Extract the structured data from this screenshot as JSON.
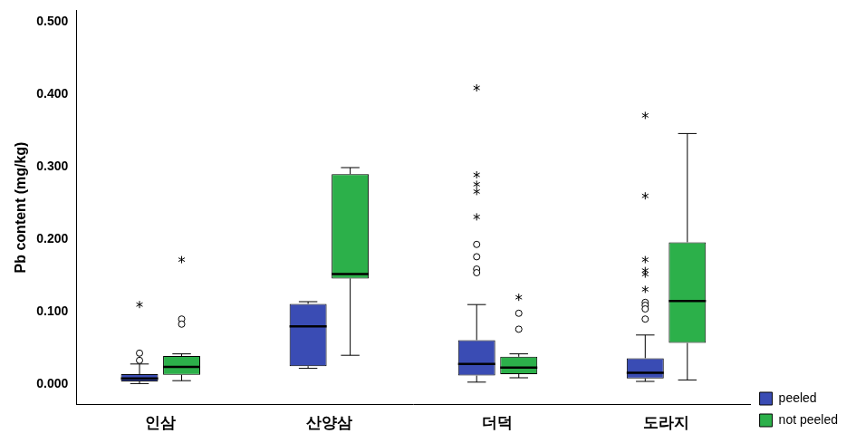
{
  "chart_data": {
    "type": "boxplot",
    "y_label": "Pb content (mg/kg)",
    "categories": [
      "인삼",
      "산양삼",
      "더덕",
      "도라지"
    ],
    "ylim": [
      -0.028,
      0.516
    ],
    "yticks": [
      {
        "value": 0,
        "label": "0.000"
      },
      {
        "value": 0.1,
        "label": "0.100"
      },
      {
        "value": 0.2,
        "label": "0.200"
      },
      {
        "value": 0.3,
        "label": "0.300"
      },
      {
        "value": 0.4,
        "label": "0.400"
      },
      {
        "value": 0.5,
        "label": "0.500"
      }
    ],
    "grid": false,
    "legend": "right",
    "series": [
      {
        "name": "peeled",
        "color": "#3a4cb4",
        "values": [
          {
            "min": 0.001,
            "q1": 0.004,
            "median": 0.008,
            "q3": 0.014,
            "max": 0.028,
            "outliers": [
              0.043,
              0.033
            ],
            "extremes": [
              0.11
            ]
          },
          {
            "min": 0.022,
            "q1": 0.025,
            "median": 0.08,
            "q3": 0.111,
            "max": 0.114,
            "outliers": [],
            "extremes": []
          },
          {
            "min": 0.003,
            "q1": 0.012,
            "median": 0.028,
            "q3": 0.061,
            "max": 0.11,
            "outliers": [
              0.193,
              0.176,
              0.159,
              0.154
            ],
            "extremes": [
              0.409,
              0.289,
              0.276,
              0.266,
              0.231
            ]
          },
          {
            "min": 0.004,
            "q1": 0.008,
            "median": 0.016,
            "q3": 0.036,
            "max": 0.068,
            "outliers": [
              0.113,
              0.109,
              0.104,
              0.09
            ],
            "extremes": [
              0.371,
              0.26,
              0.172,
              0.157,
              0.152,
              0.131
            ]
          }
        ]
      },
      {
        "name": "not peeled",
        "color": "#2cb04a",
        "values": [
          {
            "min": 0.005,
            "q1": 0.013,
            "median": 0.024,
            "q3": 0.039,
            "max": 0.042,
            "outliers": [
              0.09,
              0.083
            ],
            "extremes": [
              0.172
            ]
          },
          {
            "min": 0.04,
            "q1": 0.146,
            "median": 0.152,
            "q3": 0.29,
            "max": 0.299,
            "outliers": [],
            "extremes": []
          },
          {
            "min": 0.009,
            "q1": 0.014,
            "median": 0.023,
            "q3": 0.038,
            "max": 0.042,
            "outliers": [
              0.098,
              0.076
            ],
            "extremes": [
              0.12
            ]
          },
          {
            "min": 0.006,
            "q1": 0.057,
            "median": 0.115,
            "q3": 0.196,
            "max": 0.346,
            "outliers": [],
            "extremes": []
          }
        ]
      }
    ]
  }
}
